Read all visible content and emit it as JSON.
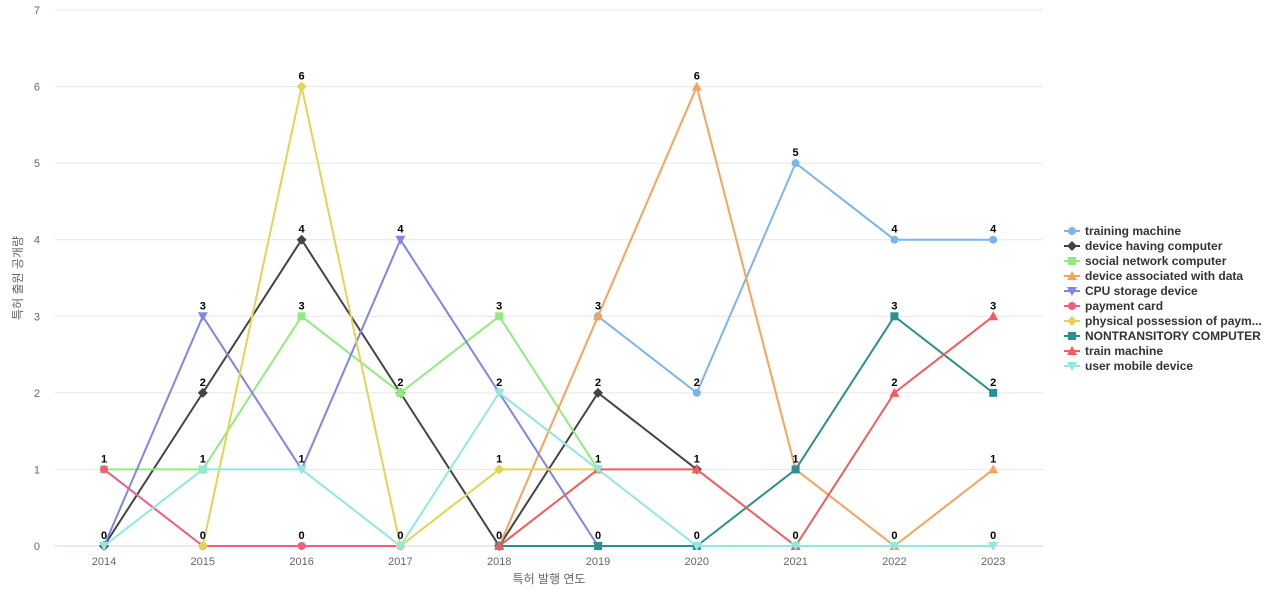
{
  "chart_data": {
    "type": "line",
    "title": "",
    "xlabel": "특허 발행 연도",
    "ylabel": "특허 출원 공개량",
    "ylim": [
      0,
      7
    ],
    "yticks": [
      0,
      1,
      2,
      3,
      4,
      5,
      6,
      7
    ],
    "grid": true,
    "legend_position": "right",
    "categories": [
      "2014",
      "2015",
      "2016",
      "2017",
      "2018",
      "2019",
      "2020",
      "2021",
      "2022",
      "2023"
    ],
    "series": [
      {
        "name": "training machine",
        "color": "#7cb5ec",
        "marker": "circle",
        "values": [
          null,
          null,
          null,
          null,
          null,
          3,
          2,
          5,
          4,
          4
        ]
      },
      {
        "name": "device having computer",
        "color": "#434348",
        "marker": "diamond",
        "values": [
          0,
          2,
          4,
          2,
          0,
          2,
          1,
          null,
          null,
          null
        ]
      },
      {
        "name": "social network computer",
        "color": "#90ed7d",
        "marker": "square",
        "values": [
          1,
          1,
          3,
          2,
          3,
          1,
          null,
          null,
          null,
          null
        ]
      },
      {
        "name": "device associated with data",
        "color": "#f7a35c",
        "marker": "triangle",
        "values": [
          null,
          null,
          null,
          null,
          0,
          3,
          6,
          1,
          0,
          1
        ]
      },
      {
        "name": "CPU storage device",
        "color": "#8085e9",
        "marker": "triangle-down",
        "values": [
          0,
          3,
          1,
          4,
          2,
          0,
          null,
          null,
          null,
          null
        ]
      },
      {
        "name": "payment card",
        "color": "#f15c80",
        "marker": "circle",
        "values": [
          1,
          0,
          0,
          0,
          null,
          null,
          null,
          null,
          null,
          null
        ]
      },
      {
        "name": "physical possession of paym...",
        "color": "#e4d354",
        "marker": "diamond",
        "values": [
          null,
          0,
          6,
          0,
          1,
          1,
          null,
          null,
          null,
          null
        ]
      },
      {
        "name": "NONTRANSITORY COMPUTER",
        "color": "#2b908f",
        "marker": "square",
        "values": [
          null,
          null,
          null,
          null,
          0,
          0,
          0,
          1,
          3,
          2
        ]
      },
      {
        "name": "train machine",
        "color": "#f45b5b",
        "marker": "triangle",
        "values": [
          null,
          null,
          null,
          null,
          0,
          1,
          1,
          0,
          2,
          3
        ]
      },
      {
        "name": "user mobile device",
        "color": "#91e8e1",
        "marker": "triangle-down",
        "values": [
          0,
          1,
          1,
          0,
          2,
          1,
          0,
          0,
          0,
          0
        ]
      }
    ],
    "data_labels": [
      {
        "category": "2014",
        "labels": [
          "1",
          "0"
        ]
      },
      {
        "category": "2015",
        "labels": [
          "3",
          "2",
          "1",
          "0"
        ]
      },
      {
        "category": "2016",
        "labels": [
          "6",
          "4",
          "3",
          "1",
          "0"
        ]
      },
      {
        "category": "2017",
        "labels": [
          "4",
          "2",
          "0"
        ]
      },
      {
        "category": "2018",
        "labels": [
          "3",
          "2",
          "1",
          "0"
        ]
      },
      {
        "category": "2019",
        "labels": [
          "3",
          "2",
          "1",
          "0"
        ]
      },
      {
        "category": "2020",
        "labels": [
          "6",
          "2",
          "1",
          "0"
        ]
      },
      {
        "category": "2021",
        "labels": [
          "5",
          "1",
          "0"
        ]
      },
      {
        "category": "2022",
        "labels": [
          "4",
          "3",
          "2",
          "0"
        ]
      },
      {
        "category": "2023",
        "labels": [
          "4",
          "3",
          "2",
          "1",
          "0"
        ]
      }
    ]
  }
}
